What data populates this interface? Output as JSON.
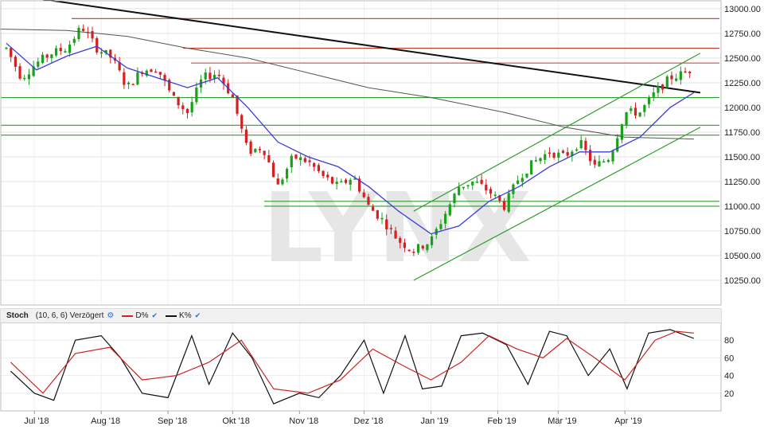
{
  "watermark": "LYNX",
  "stoch_panel": {
    "name": "Stoch",
    "params": "(10, 6, 6) Verzögert",
    "d_label": "D%",
    "k_label": "K%",
    "d_color": "#cc2222",
    "k_color": "#111111"
  },
  "colors": {
    "up": "#1aa01a",
    "down": "#d81f1f",
    "ma_fast": "#3c3cd8",
    "ma_slow": "#555555",
    "resistance": "#c0392b",
    "support": "#2e9e2e",
    "trend": "#111111"
  },
  "chart_data": [
    {
      "type": "candlestick",
      "xlabel": "",
      "ylabel": "",
      "ylim": [
        10000,
        13080
      ],
      "x_ticks": [
        "Jul '18",
        "Aug '18",
        "Sep '18",
        "Okt '18",
        "Nov '18",
        "Dez '18",
        "Jan '19",
        "Feb '19",
        "Mär '19",
        "Apr '19"
      ],
      "y_ticks": [
        10250,
        10500,
        10750,
        11000,
        11250,
        11500,
        11750,
        12000,
        12250,
        12500,
        12750,
        13000
      ],
      "y_tick_labels": [
        "10250.00",
        "10500.00",
        "10750.00",
        "11000.00",
        "11250.00",
        "11500.00",
        "11750.00",
        "12000.00",
        "12250.00",
        "12500.00",
        "12750.00",
        "13000.00"
      ],
      "close_series": [
        [
          "2018-06-18",
          12600
        ],
        [
          "2018-06-25",
          12300
        ],
        [
          "2018-07-02",
          12450
        ],
        [
          "2018-07-09",
          12550
        ],
        [
          "2018-07-16",
          12600
        ],
        [
          "2018-07-23",
          12820
        ],
        [
          "2018-07-30",
          12600
        ],
        [
          "2018-08-06",
          12500
        ],
        [
          "2018-08-13",
          12200
        ],
        [
          "2018-08-20",
          12380
        ],
        [
          "2018-08-27",
          12400
        ],
        [
          "2018-09-03",
          12100
        ],
        [
          "2018-09-10",
          11950
        ],
        [
          "2018-09-17",
          12300
        ],
        [
          "2018-09-24",
          12350
        ],
        [
          "2018-10-01",
          12100
        ],
        [
          "2018-10-08",
          11550
        ],
        [
          "2018-10-15",
          11600
        ],
        [
          "2018-10-22",
          11200
        ],
        [
          "2018-10-29",
          11500
        ],
        [
          "2018-11-05",
          11450
        ],
        [
          "2018-11-12",
          11300
        ],
        [
          "2018-11-19",
          11200
        ],
        [
          "2018-11-26",
          11300
        ],
        [
          "2018-12-03",
          11000
        ],
        [
          "2018-12-10",
          10850
        ],
        [
          "2018-12-17",
          10650
        ],
        [
          "2018-12-24",
          10550
        ],
        [
          "2019-01-01",
          10650
        ],
        [
          "2019-01-07",
          10900
        ],
        [
          "2019-01-14",
          11200
        ],
        [
          "2019-01-21",
          11250
        ],
        [
          "2019-01-28",
          11150
        ],
        [
          "2019-02-04",
          11000
        ],
        [
          "2019-02-11",
          11300
        ],
        [
          "2019-02-18",
          11450
        ],
        [
          "2019-02-25",
          11550
        ],
        [
          "2019-03-04",
          11500
        ],
        [
          "2019-03-11",
          11650
        ],
        [
          "2019-03-18",
          11400
        ],
        [
          "2019-03-25",
          11500
        ],
        [
          "2019-04-01",
          11950
        ],
        [
          "2019-04-08",
          11950
        ],
        [
          "2019-04-15",
          12150
        ],
        [
          "2019-04-22",
          12300
        ],
        [
          "2019-04-29",
          12350
        ],
        [
          "2019-05-03",
          12400
        ]
      ],
      "ma_fast": [
        [
          "2018-06-18",
          12650
        ],
        [
          "2018-07-02",
          12380
        ],
        [
          "2018-07-16",
          12520
        ],
        [
          "2018-07-30",
          12620
        ],
        [
          "2018-08-13",
          12400
        ],
        [
          "2018-08-27",
          12300
        ],
        [
          "2018-09-10",
          12200
        ],
        [
          "2018-09-24",
          12300
        ],
        [
          "2018-10-08",
          12000
        ],
        [
          "2018-10-22",
          11650
        ],
        [
          "2018-11-05",
          11500
        ],
        [
          "2018-11-19",
          11400
        ],
        [
          "2018-12-03",
          11200
        ],
        [
          "2018-12-17",
          10950
        ],
        [
          "2019-01-01",
          10720
        ],
        [
          "2019-01-14",
          10800
        ],
        [
          "2019-01-28",
          11050
        ],
        [
          "2019-02-11",
          11200
        ],
        [
          "2019-02-25",
          11400
        ],
        [
          "2019-03-11",
          11550
        ],
        [
          "2019-03-25",
          11550
        ],
        [
          "2019-04-08",
          11700
        ],
        [
          "2019-04-22",
          12000
        ],
        [
          "2019-05-03",
          12150
        ]
      ],
      "ma_slow": [
        [
          "2018-06-01",
          12800
        ],
        [
          "2018-07-16",
          12780
        ],
        [
          "2018-08-13",
          12720
        ],
        [
          "2018-09-10",
          12600
        ],
        [
          "2018-10-08",
          12500
        ],
        [
          "2018-11-05",
          12350
        ],
        [
          "2018-12-03",
          12200
        ],
        [
          "2019-01-01",
          12100
        ],
        [
          "2019-02-04",
          11950
        ],
        [
          "2019-03-04",
          11800
        ],
        [
          "2019-04-01",
          11700
        ],
        [
          "2019-05-03",
          11680
        ]
      ],
      "horizontal_lines": [
        {
          "kind": "resistance",
          "y": 12900
        },
        {
          "kind": "resistance",
          "y": 12600
        },
        {
          "kind": "resistance",
          "y": 12450
        },
        {
          "kind": "support",
          "y": 12100
        },
        {
          "kind": "support",
          "y": 11820
        },
        {
          "kind": "support",
          "y": 11720
        },
        {
          "kind": "support",
          "y": 11050
        },
        {
          "kind": "support",
          "y": 11000
        }
      ],
      "trend_lines": [
        {
          "kind": "resistance",
          "from": [
            "2018-06-01",
            13200
          ],
          "to": [
            "2019-05-06",
            12150
          ]
        },
        {
          "kind": "support",
          "from": [
            "2018-12-24",
            10950
          ],
          "to": [
            "2019-05-06",
            12550
          ]
        },
        {
          "kind": "support",
          "from": [
            "2018-12-24",
            10250
          ],
          "to": [
            "2019-05-06",
            11800
          ]
        }
      ]
    },
    {
      "type": "line",
      "title": "Stoch",
      "ylim": [
        0,
        100
      ],
      "y_ticks": [
        20,
        40,
        60,
        80
      ],
      "series": [
        {
          "name": "K%",
          "points": [
            [
              "2018-06-20",
              45
            ],
            [
              "2018-07-01",
              20
            ],
            [
              "2018-07-10",
              12
            ],
            [
              "2018-07-20",
              80
            ],
            [
              "2018-08-01",
              85
            ],
            [
              "2018-08-10",
              60
            ],
            [
              "2018-08-20",
              20
            ],
            [
              "2018-09-01",
              15
            ],
            [
              "2018-09-12",
              85
            ],
            [
              "2018-09-20",
              30
            ],
            [
              "2018-10-01",
              88
            ],
            [
              "2018-10-10",
              60
            ],
            [
              "2018-10-20",
              8
            ],
            [
              "2018-11-01",
              20
            ],
            [
              "2018-11-10",
              15
            ],
            [
              "2018-11-20",
              40
            ],
            [
              "2018-12-01",
              80
            ],
            [
              "2018-12-10",
              20
            ],
            [
              "2018-12-20",
              85
            ],
            [
              "2018-12-28",
              25
            ],
            [
              "2019-01-06",
              28
            ],
            [
              "2019-01-15",
              85
            ],
            [
              "2019-01-25",
              88
            ],
            [
              "2019-02-05",
              75
            ],
            [
              "2019-02-15",
              30
            ],
            [
              "2019-02-25",
              90
            ],
            [
              "2019-03-05",
              85
            ],
            [
              "2019-03-15",
              40
            ],
            [
              "2019-03-25",
              70
            ],
            [
              "2019-04-02",
              25
            ],
            [
              "2019-04-12",
              88
            ],
            [
              "2019-04-22",
              92
            ],
            [
              "2019-05-03",
              82
            ]
          ]
        },
        {
          "name": "D%",
          "points": [
            [
              "2018-06-20",
              55
            ],
            [
              "2018-07-05",
              20
            ],
            [
              "2018-07-20",
              65
            ],
            [
              "2018-08-05",
              72
            ],
            [
              "2018-08-20",
              35
            ],
            [
              "2018-09-05",
              40
            ],
            [
              "2018-09-20",
              55
            ],
            [
              "2018-10-05",
              80
            ],
            [
              "2018-10-20",
              25
            ],
            [
              "2018-11-05",
              20
            ],
            [
              "2018-11-20",
              35
            ],
            [
              "2018-12-05",
              70
            ],
            [
              "2018-12-20",
              50
            ],
            [
              "2019-01-01",
              35
            ],
            [
              "2019-01-15",
              55
            ],
            [
              "2019-01-28",
              85
            ],
            [
              "2019-02-10",
              70
            ],
            [
              "2019-02-22",
              60
            ],
            [
              "2019-03-05",
              82
            ],
            [
              "2019-03-18",
              60
            ],
            [
              "2019-04-01",
              35
            ],
            [
              "2019-04-15",
              80
            ],
            [
              "2019-04-25",
              90
            ],
            [
              "2019-05-03",
              88
            ]
          ]
        }
      ]
    }
  ]
}
